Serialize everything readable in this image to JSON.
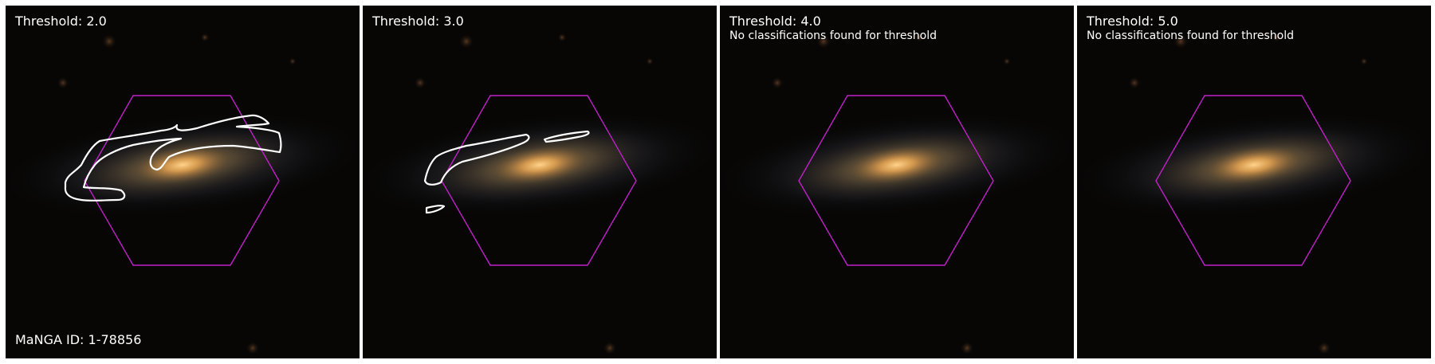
{
  "colors": {
    "hexagon": "#c020c8",
    "contour": "#ffffff",
    "text": "#ffffff",
    "background": "#ffffff"
  },
  "panels": [
    {
      "title": "Threshold: 2.0",
      "subtitle": "",
      "footer": "MaNGA ID: 1-78856"
    },
    {
      "title": "Threshold: 3.0",
      "subtitle": "",
      "footer": ""
    },
    {
      "title": "Threshold: 4.0",
      "subtitle": "No classifications found for threshold",
      "footer": ""
    },
    {
      "title": "Threshold: 5.0",
      "subtitle": "No classifications found for threshold",
      "footer": ""
    }
  ]
}
